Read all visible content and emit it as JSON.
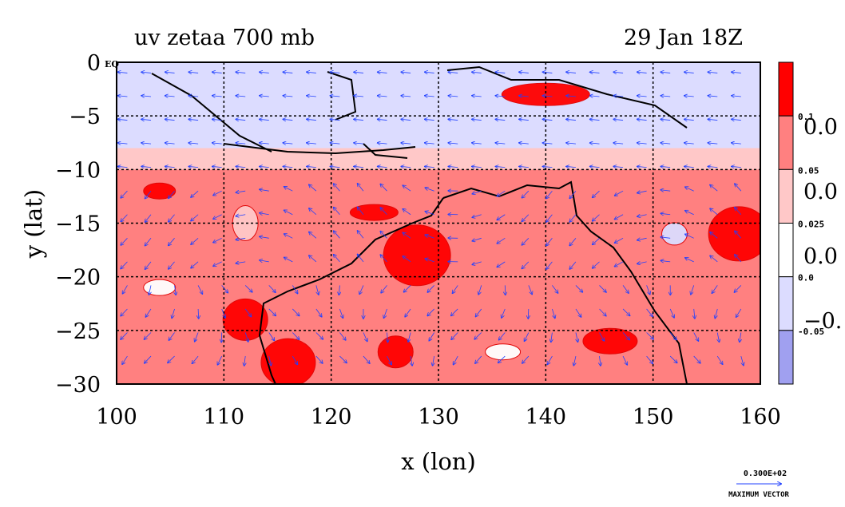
{
  "chart_data": {
    "type": "heatmap",
    "title": "uv zetaa 700 mb",
    "time_label": "29 Jan 18Z",
    "xlabel": "x (lon)",
    "ylabel": "y (lat)",
    "xlim": [
      100,
      160
    ],
    "ylim": [
      -30,
      0
    ],
    "x_ticks": [
      "100",
      "110",
      "120",
      "130",
      "140",
      "150",
      "160"
    ],
    "y_ticks": [
      "0",
      "−5",
      "−10",
      "−15",
      "−20",
      "−25",
      "−30"
    ],
    "y_top_suffix": "EQ",
    "grid": true,
    "colorbar": {
      "bins": [
        {
          "label": "0.1",
          "color": "#ff0000"
        },
        {
          "label": "0.05",
          "color": "#ff8080"
        },
        {
          "label": "0.025",
          "color": "#ffc8c8"
        },
        {
          "label": "0.0",
          "color": "#ffffff"
        },
        {
          "label": "-0.05",
          "color": "#dcdcff"
        },
        {
          "label": "",
          "color": "#a0a0f0"
        }
      ],
      "large_labels": [
        "0.0",
        "0.0",
        "0.0",
        "−0."
      ]
    },
    "vector_key": {
      "magnitude": "0.300E+02",
      "label": "MAXIMUM VECTOR"
    },
    "bands": [
      {
        "lat_from": 0,
        "lat_to": -8,
        "level": "-0.05"
      },
      {
        "lat_from": -8,
        "lat_to": -10,
        "level": "0.025"
      },
      {
        "lat_from": -10,
        "lat_to": -30,
        "level": "0.05"
      }
    ],
    "blobs": [
      {
        "lon": 128,
        "lat": -18,
        "level": "0.1"
      },
      {
        "lon": 158,
        "lat": -16,
        "level": "0.1"
      },
      {
        "lon": 116,
        "lat": -28,
        "level": "0.1"
      },
      {
        "lon": 112,
        "lat": -24,
        "level": "0.1"
      },
      {
        "lon": 140,
        "lat": -3,
        "level": "0.1"
      },
      {
        "lon": 124,
        "lat": -14,
        "level": "0.1"
      },
      {
        "lon": 104,
        "lat": -12,
        "level": "0.1"
      },
      {
        "lon": 146,
        "lat": -26,
        "level": "0.1"
      },
      {
        "lon": 126,
        "lat": -27,
        "level": "0.1"
      },
      {
        "lon": 104,
        "lat": -21,
        "level": "0.0"
      },
      {
        "lon": 136,
        "lat": -27,
        "level": "0.0"
      },
      {
        "lon": 152,
        "lat": -16,
        "level": "-0.05"
      },
      {
        "lon": 112,
        "lat": -15,
        "level": "0.025"
      }
    ]
  }
}
